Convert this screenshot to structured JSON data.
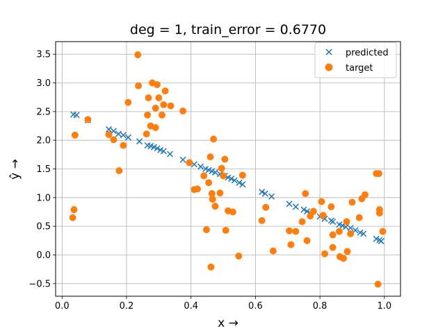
{
  "chart_data": {
    "type": "scatter",
    "title": "deg = 1, train_error = 0.6770",
    "xlabel": "x →",
    "ylabel": "ŷ →",
    "xlim": [
      -0.02,
      1.05
    ],
    "ylim": [
      -0.72,
      3.72
    ],
    "xticks": [
      0.0,
      0.2,
      0.4,
      0.6,
      0.8,
      1.0
    ],
    "xtick_labels": [
      "0.0",
      "0.2",
      "0.4",
      "0.6",
      "0.8",
      "1.0"
    ],
    "yticks": [
      -0.5,
      0.0,
      0.5,
      1.0,
      1.5,
      2.0,
      2.5,
      3.0,
      3.5
    ],
    "ytick_labels": [
      "−0.5",
      "0.0",
      "0.5",
      "1.0",
      "1.5",
      "2.0",
      "2.5",
      "3.0",
      "3.5"
    ],
    "grid": true,
    "legend_position": "top-right",
    "series": [
      {
        "name": "predicted",
        "marker": "x",
        "color": "#1f77b4",
        "points": [
          [
            0.035,
            2.45
          ],
          [
            0.045,
            2.44
          ],
          [
            0.08,
            2.35
          ],
          [
            0.145,
            2.19
          ],
          [
            0.16,
            2.16
          ],
          [
            0.175,
            2.11
          ],
          [
            0.19,
            2.09
          ],
          [
            0.205,
            2.05
          ],
          [
            0.24,
            1.98
          ],
          [
            0.265,
            1.91
          ],
          [
            0.275,
            1.9
          ],
          [
            0.285,
            1.88
          ],
          [
            0.295,
            1.86
          ],
          [
            0.305,
            1.83
          ],
          [
            0.315,
            1.81
          ],
          [
            0.335,
            1.76
          ],
          [
            0.375,
            1.66
          ],
          [
            0.41,
            1.58
          ],
          [
            0.43,
            1.54
          ],
          [
            0.445,
            1.5
          ],
          [
            0.455,
            1.48
          ],
          [
            0.465,
            1.46
          ],
          [
            0.475,
            1.44
          ],
          [
            0.49,
            1.41
          ],
          [
            0.505,
            1.38
          ],
          [
            0.515,
            1.35
          ],
          [
            0.525,
            1.33
          ],
          [
            0.535,
            1.3
          ],
          [
            0.55,
            1.26
          ],
          [
            0.56,
            1.23
          ],
          [
            0.62,
            1.1
          ],
          [
            0.63,
            1.07
          ],
          [
            0.65,
            1.02
          ],
          [
            0.705,
            0.89
          ],
          [
            0.725,
            0.84
          ],
          [
            0.75,
            0.79
          ],
          [
            0.76,
            0.76
          ],
          [
            0.77,
            0.73
          ],
          [
            0.8,
            0.67
          ],
          [
            0.815,
            0.63
          ],
          [
            0.835,
            0.6
          ],
          [
            0.84,
            0.58
          ],
          [
            0.86,
            0.53
          ],
          [
            0.87,
            0.51
          ],
          [
            0.88,
            0.49
          ],
          [
            0.895,
            0.47
          ],
          [
            0.91,
            0.43
          ],
          [
            0.925,
            0.39
          ],
          [
            0.935,
            0.37
          ],
          [
            0.975,
            0.28
          ],
          [
            0.985,
            0.26
          ],
          [
            0.99,
            0.24
          ]
        ]
      },
      {
        "name": "target",
        "marker": "o",
        "color": "#ff7f0e",
        "points": [
          [
            0.033,
            0.65
          ],
          [
            0.037,
            0.79
          ],
          [
            0.04,
            2.09
          ],
          [
            0.08,
            2.36
          ],
          [
            0.145,
            2.1
          ],
          [
            0.16,
            2.01
          ],
          [
            0.177,
            1.47
          ],
          [
            0.19,
            1.91
          ],
          [
            0.205,
            2.66
          ],
          [
            0.235,
            3.49
          ],
          [
            0.237,
            2.95
          ],
          [
            0.262,
            2.11
          ],
          [
            0.265,
            2.44
          ],
          [
            0.268,
            2.74
          ],
          [
            0.275,
            2.25
          ],
          [
            0.28,
            3.0
          ],
          [
            0.29,
            2.22
          ],
          [
            0.29,
            2.56
          ],
          [
            0.295,
            2.97
          ],
          [
            0.3,
            2.74
          ],
          [
            0.31,
            2.44
          ],
          [
            0.315,
            2.62
          ],
          [
            0.32,
            2.86
          ],
          [
            0.337,
            2.6
          ],
          [
            0.375,
            2.51
          ],
          [
            0.395,
            1.61
          ],
          [
            0.41,
            1.14
          ],
          [
            0.42,
            1.15
          ],
          [
            0.44,
            1.38
          ],
          [
            0.448,
            0.44
          ],
          [
            0.455,
            1.26
          ],
          [
            0.46,
            1.71
          ],
          [
            0.462,
            -0.21
          ],
          [
            0.465,
            1.07
          ],
          [
            0.467,
            0.97
          ],
          [
            0.47,
            2.02
          ],
          [
            0.475,
            0.85
          ],
          [
            0.49,
            1.08
          ],
          [
            0.495,
            1.51
          ],
          [
            0.5,
            1.38
          ],
          [
            0.505,
            1.67
          ],
          [
            0.508,
            0.43
          ],
          [
            0.515,
            0.77
          ],
          [
            0.53,
            0.75
          ],
          [
            0.548,
            -0.02
          ],
          [
            0.56,
            1.39
          ],
          [
            0.62,
            0.6
          ],
          [
            0.632,
            0.83
          ],
          [
            0.655,
            0.07
          ],
          [
            0.705,
            0.42
          ],
          [
            0.71,
            0.18
          ],
          [
            0.725,
            0.41
          ],
          [
            0.745,
            0.58
          ],
          [
            0.755,
            1.07
          ],
          [
            0.76,
            0.25
          ],
          [
            0.77,
            0.68
          ],
          [
            0.78,
            0.76
          ],
          [
            0.805,
            0.93
          ],
          [
            0.81,
            0.69
          ],
          [
            0.815,
            0.02
          ],
          [
            0.835,
            0.84
          ],
          [
            0.84,
            0.13
          ],
          [
            0.84,
            0.35
          ],
          [
            0.86,
            0.41
          ],
          [
            0.862,
            -0.03
          ],
          [
            0.873,
            -0.06
          ],
          [
            0.883,
            0.58
          ],
          [
            0.885,
            0.06
          ],
          [
            0.895,
            0.37
          ],
          [
            0.9,
            0.92
          ],
          [
            0.922,
            0.65
          ],
          [
            0.93,
            0.98
          ],
          [
            0.94,
            1.05
          ],
          [
            0.975,
            1.42
          ],
          [
            0.98,
            -0.51
          ],
          [
            0.983,
            1.42
          ],
          [
            0.985,
            0.79
          ],
          [
            0.985,
            0.73
          ],
          [
            0.995,
            0.41
          ]
        ]
      }
    ]
  }
}
